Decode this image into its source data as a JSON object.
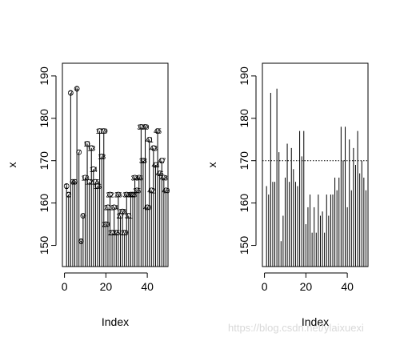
{
  "chart_data": [
    {
      "type": "scatter",
      "plot_type": "h",
      "point_labels": true,
      "xlabel": "Index",
      "ylabel": "x",
      "xticks": [
        0,
        20,
        40
      ],
      "yticks": [
        150,
        160,
        170,
        180,
        190
      ],
      "xlim": [
        -1,
        50
      ],
      "ylim": [
        145,
        193
      ],
      "series": [
        {
          "x": [
            1,
            2,
            3,
            4,
            5,
            6,
            7,
            8,
            9,
            10,
            11,
            12,
            13,
            14,
            15,
            16,
            17,
            18,
            19,
            20,
            21,
            22,
            23,
            24,
            25,
            26,
            27,
            28,
            29,
            30,
            31,
            32,
            33,
            34,
            35,
            36,
            37,
            38,
            39,
            40,
            41,
            42,
            43,
            44,
            45,
            46,
            47,
            48,
            49
          ],
          "values": [
            164,
            162,
            186,
            165,
            165,
            187,
            172,
            151,
            157,
            166,
            174,
            165,
            173,
            168,
            165,
            164,
            177,
            171,
            177,
            155,
            159,
            162,
            153,
            159,
            153,
            162,
            157,
            158,
            153,
            162,
            157,
            162,
            162,
            166,
            163,
            166,
            178,
            170,
            178,
            159,
            175,
            163,
            173,
            169,
            177,
            167,
            170,
            166,
            163
          ]
        }
      ]
    },
    {
      "type": "line",
      "plot_type": "h",
      "xlabel": "Index",
      "ylabel": "x",
      "xticks": [
        0,
        20,
        40
      ],
      "yticks": [
        150,
        160,
        170,
        180,
        190
      ],
      "xlim": [
        -1,
        50
      ],
      "ylim": [
        145,
        193
      ],
      "reference_line": {
        "y": 170,
        "style": "dotted"
      },
      "series": [
        {
          "x": [
            1,
            2,
            3,
            4,
            5,
            6,
            7,
            8,
            9,
            10,
            11,
            12,
            13,
            14,
            15,
            16,
            17,
            18,
            19,
            20,
            21,
            22,
            23,
            24,
            25,
            26,
            27,
            28,
            29,
            30,
            31,
            32,
            33,
            34,
            35,
            36,
            37,
            38,
            39,
            40,
            41,
            42,
            43,
            44,
            45,
            46,
            47,
            48,
            49
          ],
          "values": [
            164,
            162,
            186,
            165,
            165,
            187,
            172,
            151,
            157,
            166,
            174,
            165,
            173,
            168,
            165,
            164,
            177,
            171,
            177,
            155,
            159,
            162,
            153,
            159,
            153,
            162,
            157,
            158,
            153,
            162,
            157,
            162,
            162,
            166,
            163,
            166,
            178,
            170,
            178,
            159,
            175,
            163,
            173,
            169,
            177,
            167,
            170,
            166,
            163
          ]
        }
      ]
    }
  ],
  "watermark": "https://blog.csdn.net/ylaixuexi"
}
